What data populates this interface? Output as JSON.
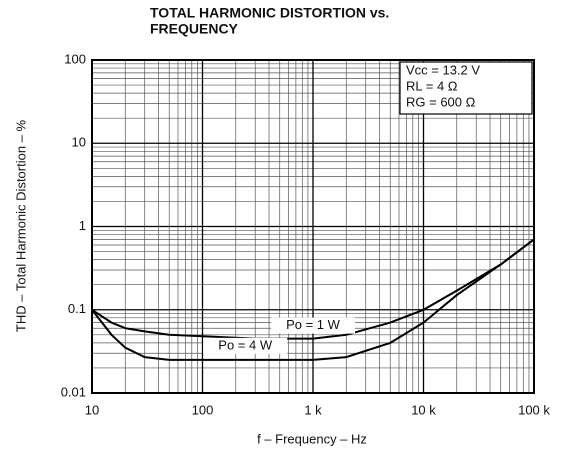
{
  "chart_data": {
    "type": "line",
    "title": "TOTAL HARMONIC DISTORTION vs.",
    "subtitle": "FREQUENCY",
    "x_label": "f – Frequency – Hz",
    "y_label": "THD – Total Harmonic Distortion – %",
    "annotations": [
      "Vcc = 13.2 V",
      "RL = 4 Ω",
      "RG = 600 Ω"
    ],
    "x": [
      10,
      15,
      20,
      30,
      50,
      100,
      300,
      1000,
      2000,
      5000,
      10000,
      20000,
      50000,
      100000
    ],
    "series": [
      {
        "name": "Po = 1 W",
        "color": "#000000",
        "values": [
          0.1,
          0.07,
          0.06,
          0.055,
          0.05,
          0.048,
          0.045,
          0.045,
          0.05,
          0.07,
          0.1,
          0.17,
          0.35,
          0.7
        ]
      },
      {
        "name": "Po = 4 W",
        "color": "#000000",
        "values": [
          0.1,
          0.05,
          0.035,
          0.027,
          0.025,
          0.025,
          0.025,
          0.025,
          0.027,
          0.04,
          0.07,
          0.15,
          0.35,
          0.7
        ]
      }
    ],
    "xlim": [
      10,
      100000
    ],
    "ylim": [
      0.01,
      100
    ],
    "xticks": [
      10,
      100,
      {
        "value": 1000,
        "label": "1 k"
      },
      {
        "value": 10000,
        "label": "10 k"
      },
      {
        "value": 100000,
        "label": "100 k"
      }
    ],
    "yticks": [
      0.01,
      0.1,
      1,
      10,
      100
    ],
    "xscale": "log",
    "yscale": "log",
    "grid": true
  }
}
